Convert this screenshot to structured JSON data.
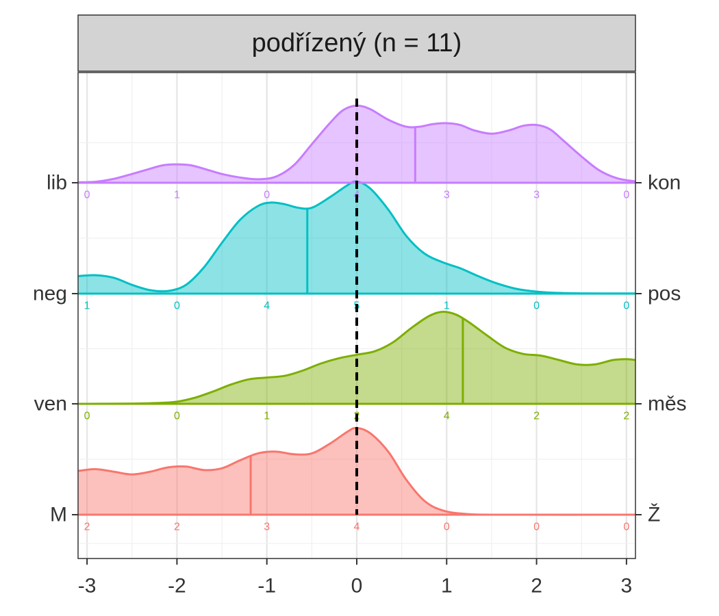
{
  "chart_data": {
    "type": "ridgeline",
    "title": "podřízený (n = 11)",
    "xlabel": "",
    "ylabel": "",
    "xlim": [
      -3.1,
      3.1
    ],
    "x_ticks": [
      -3,
      -2,
      -1,
      0,
      1,
      2,
      3
    ],
    "x_tick_labels": [
      "-3",
      "-2",
      "-1",
      "0",
      "1",
      "2",
      "3"
    ],
    "reference_line_x": 0,
    "grid": true,
    "legend": "none",
    "series": [
      {
        "left_label": "lib",
        "right_label": "kon",
        "color": "#C77CFF",
        "mean": 0.65,
        "counts": [
          0,
          1,
          0,
          4,
          3,
          3,
          0
        ],
        "density": [
          [
            -3.1,
            0.005
          ],
          [
            -2.9,
            0.012
          ],
          [
            -2.7,
            0.045
          ],
          [
            -2.5,
            0.1
          ],
          [
            -2.3,
            0.16
          ],
          [
            -2.15,
            0.2
          ],
          [
            -2.0,
            0.21
          ],
          [
            -1.85,
            0.2
          ],
          [
            -1.7,
            0.16
          ],
          [
            -1.5,
            0.1
          ],
          [
            -1.3,
            0.06
          ],
          [
            -1.1,
            0.04
          ],
          [
            -0.9,
            0.07
          ],
          [
            -0.7,
            0.2
          ],
          [
            -0.5,
            0.44
          ],
          [
            -0.3,
            0.68
          ],
          [
            -0.15,
            0.83
          ],
          [
            0.0,
            0.88
          ],
          [
            0.15,
            0.84
          ],
          [
            0.35,
            0.72
          ],
          [
            0.55,
            0.64
          ],
          [
            0.7,
            0.64
          ],
          [
            0.85,
            0.67
          ],
          [
            1.0,
            0.68
          ],
          [
            1.15,
            0.66
          ],
          [
            1.3,
            0.6
          ],
          [
            1.5,
            0.56
          ],
          [
            1.7,
            0.6
          ],
          [
            1.85,
            0.65
          ],
          [
            2.0,
            0.66
          ],
          [
            2.15,
            0.61
          ],
          [
            2.3,
            0.48
          ],
          [
            2.5,
            0.3
          ],
          [
            2.7,
            0.14
          ],
          [
            2.9,
            0.05
          ],
          [
            3.1,
            0.015
          ]
        ]
      },
      {
        "left_label": "neg",
        "right_label": "pos",
        "color": "#00BFC4",
        "mean": -0.55,
        "counts": [
          1,
          0,
          4,
          5,
          1,
          0,
          0
        ],
        "density": [
          [
            -3.1,
            0.2
          ],
          [
            -2.9,
            0.21
          ],
          [
            -2.7,
            0.18
          ],
          [
            -2.5,
            0.1
          ],
          [
            -2.3,
            0.04
          ],
          [
            -2.1,
            0.03
          ],
          [
            -1.9,
            0.1
          ],
          [
            -1.7,
            0.3
          ],
          [
            -1.5,
            0.58
          ],
          [
            -1.3,
            0.84
          ],
          [
            -1.1,
            1.0
          ],
          [
            -0.95,
            1.04
          ],
          [
            -0.8,
            1.02
          ],
          [
            -0.65,
            0.98
          ],
          [
            -0.5,
            0.98
          ],
          [
            -0.3,
            1.1
          ],
          [
            -0.1,
            1.24
          ],
          [
            0.0,
            1.28
          ],
          [
            0.15,
            1.2
          ],
          [
            0.35,
            0.96
          ],
          [
            0.55,
            0.66
          ],
          [
            0.75,
            0.46
          ],
          [
            0.95,
            0.36
          ],
          [
            1.15,
            0.29
          ],
          [
            1.35,
            0.2
          ],
          [
            1.55,
            0.12
          ],
          [
            1.8,
            0.05
          ],
          [
            2.1,
            0.015
          ],
          [
            2.5,
            0.003
          ],
          [
            3.1,
            0.002
          ]
        ]
      },
      {
        "left_label": "ven",
        "right_label": "měs",
        "color": "#7CAE00",
        "mean": 1.18,
        "counts": [
          0,
          0,
          1,
          2,
          4,
          2,
          2
        ],
        "density": [
          [
            -3.1,
            0.0
          ],
          [
            -2.6,
            0.002
          ],
          [
            -2.2,
            0.01
          ],
          [
            -2.0,
            0.025
          ],
          [
            -1.8,
            0.07
          ],
          [
            -1.6,
            0.14
          ],
          [
            -1.4,
            0.22
          ],
          [
            -1.2,
            0.28
          ],
          [
            -1.0,
            0.3
          ],
          [
            -0.8,
            0.32
          ],
          [
            -0.6,
            0.38
          ],
          [
            -0.4,
            0.46
          ],
          [
            -0.2,
            0.52
          ],
          [
            0.0,
            0.56
          ],
          [
            0.2,
            0.6
          ],
          [
            0.4,
            0.7
          ],
          [
            0.6,
            0.86
          ],
          [
            0.8,
            1.0
          ],
          [
            0.95,
            1.05
          ],
          [
            1.1,
            1.02
          ],
          [
            1.25,
            0.93
          ],
          [
            1.45,
            0.78
          ],
          [
            1.65,
            0.64
          ],
          [
            1.85,
            0.57
          ],
          [
            2.05,
            0.55
          ],
          [
            2.25,
            0.5
          ],
          [
            2.45,
            0.45
          ],
          [
            2.65,
            0.45
          ],
          [
            2.85,
            0.5
          ],
          [
            3.0,
            0.51
          ],
          [
            3.1,
            0.5
          ]
        ]
      },
      {
        "left_label": "M",
        "right_label": "Ž",
        "color": "#F8766D",
        "mean": -1.18,
        "counts": [
          2,
          2,
          3,
          4,
          0,
          0,
          0
        ],
        "density": [
          [
            -3.1,
            0.5
          ],
          [
            -2.9,
            0.52
          ],
          [
            -2.7,
            0.49
          ],
          [
            -2.5,
            0.46
          ],
          [
            -2.3,
            0.49
          ],
          [
            -2.1,
            0.54
          ],
          [
            -1.9,
            0.55
          ],
          [
            -1.7,
            0.51
          ],
          [
            -1.5,
            0.53
          ],
          [
            -1.3,
            0.62
          ],
          [
            -1.1,
            0.7
          ],
          [
            -0.9,
            0.72
          ],
          [
            -0.7,
            0.69
          ],
          [
            -0.5,
            0.7
          ],
          [
            -0.3,
            0.81
          ],
          [
            -0.1,
            0.95
          ],
          [
            0.0,
            0.99
          ],
          [
            0.15,
            0.93
          ],
          [
            0.35,
            0.72
          ],
          [
            0.55,
            0.4
          ],
          [
            0.75,
            0.16
          ],
          [
            0.95,
            0.05
          ],
          [
            1.2,
            0.01
          ],
          [
            1.6,
            0.0
          ],
          [
            3.1,
            0.0
          ]
        ]
      }
    ]
  }
}
